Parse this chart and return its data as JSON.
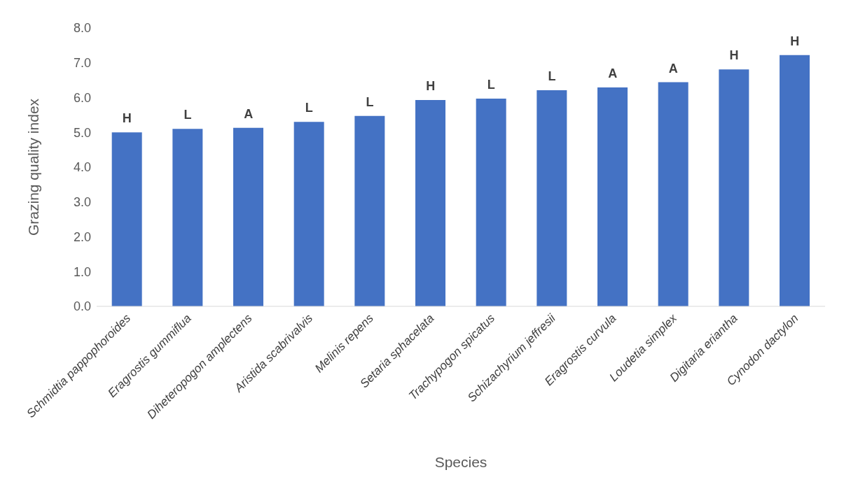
{
  "chart_data": {
    "type": "bar",
    "xlabel": "Species",
    "ylabel": "Grazing quality index",
    "categories": [
      "Schmidtia pappophoroides",
      "Eragrostis gummiflua",
      "Diheteropogon amplectens",
      "Aristida scabrivalvis",
      "Melinis repens",
      "Setaria sphacelata",
      "Trachypogon spicatus",
      "Schizachyrium jeffresii",
      "Eragrostis curvula",
      "Loudetia simplex",
      "Digitaria eriantha",
      "Cynodon dactylon"
    ],
    "values": [
      5.0,
      5.1,
      5.13,
      5.3,
      5.47,
      5.93,
      5.97,
      6.21,
      6.29,
      6.44,
      6.81,
      7.22
    ],
    "color": "#4472c4",
    "ylim": [
      0,
      8
    ],
    "yticks": [
      {
        "value": 0,
        "label": "0.0"
      },
      {
        "value": 1,
        "label": "1.0"
      },
      {
        "value": 2,
        "label": "2.0"
      },
      {
        "value": 3,
        "label": "3.0"
      },
      {
        "value": 4,
        "label": "4.0"
      },
      {
        "value": 5,
        "label": "5.0"
      },
      {
        "value": 6,
        "label": "6.0"
      },
      {
        "value": 7,
        "label": "7.0"
      },
      {
        "value": 8,
        "label": "8.0"
      }
    ],
    "grid": false,
    "annotations": [
      {
        "text": "H",
        "x": "Schmidtia pappophoroides",
        "y": 5.0
      },
      {
        "text": "L",
        "x": "Eragrostis gummiflua",
        "y": 5.1
      },
      {
        "text": "A",
        "x": "Diheteropogon amplectens",
        "y": 5.13
      },
      {
        "text": "L",
        "x": "Aristida scabrivalvis",
        "y": 5.3
      },
      {
        "text": "L",
        "x": "Melinis repens",
        "y": 5.47
      },
      {
        "text": "H",
        "x": "Setaria sphacelata",
        "y": 5.93
      },
      {
        "text": "L",
        "x": "Trachypogon spicatus",
        "y": 5.97
      },
      {
        "text": "L",
        "x": "Schizachyrium jeffresii",
        "y": 6.21
      },
      {
        "text": "A",
        "x": "Eragrostis curvula",
        "y": 6.29
      },
      {
        "text": "A",
        "x": "Loudetia simplex",
        "y": 6.44
      },
      {
        "text": "H",
        "x": "Digitaria eriantha",
        "y": 6.81
      },
      {
        "text": "H",
        "x": "Cynodon dactylon",
        "y": 7.22
      }
    ]
  }
}
